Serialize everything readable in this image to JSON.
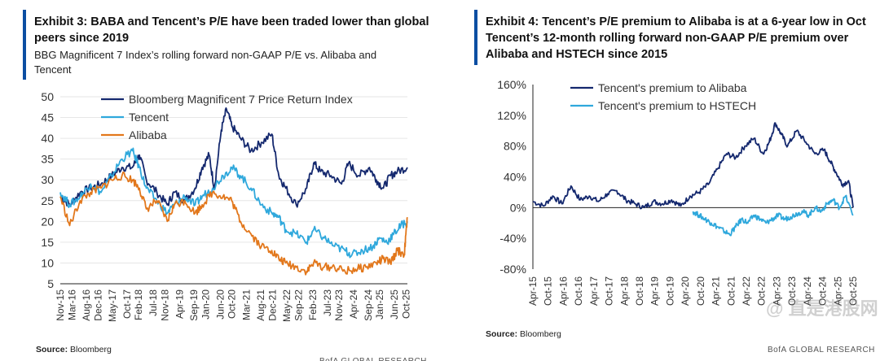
{
  "left": {
    "title_line1": "Exhibit 3: BABA and Tencent’s P/E have been traded lower than global",
    "title_line2": "peers since 2019",
    "subtitle_line1": "BBG Magnificent 7 Index’s rolling forward non-GAAP P/E vs. Alibaba and",
    "subtitle_line2": "Tencent",
    "source_label": "Source:",
    "source_value": "Bloomberg",
    "footer_partial": "BofA GLOBAL RESEARCH"
  },
  "right": {
    "title_line1": "Exhibit 4: Tencent’s P/E premium to Alibaba is at a 6-year low in Oct",
    "title_line2": "Tencent’s 12-month rolling forward non-GAAP P/E premium over",
    "title_line3": "Alibaba and HSTECH since 2015",
    "source_label": "Source:",
    "source_value": "Bloomberg",
    "footer": "BofA GLOBAL RESEARCH"
  },
  "watermark": "@ 直是港股网",
  "colors": {
    "dark_blue": "#14286e",
    "light_blue": "#2fa8dc",
    "orange": "#e2771b",
    "accent_bar": "#0b4ea2"
  },
  "chart_data": [
    {
      "type": "line",
      "title": "BBG Magnificent 7 Index’s rolling forward non-GAAP P/E vs. Alibaba and Tencent",
      "ylim": [
        5,
        50
      ],
      "yticks": [
        5,
        10,
        15,
        20,
        25,
        30,
        35,
        40,
        45,
        50
      ],
      "xlim": [
        2015.83,
        2025.79
      ],
      "xticks": [
        {
          "label": "Nov-15",
          "t": 2015.83
        },
        {
          "label": "Mar-16",
          "t": 2016.17
        },
        {
          "label": "Aug-16",
          "t": 2016.58
        },
        {
          "label": "Dec-16",
          "t": 2016.92
        },
        {
          "label": "May-17",
          "t": 2017.33
        },
        {
          "label": "Oct-17",
          "t": 2017.75
        },
        {
          "label": "Feb-18",
          "t": 2018.08
        },
        {
          "label": "Jul-18",
          "t": 2018.5
        },
        {
          "label": "Nov-18",
          "t": 2018.83
        },
        {
          "label": "Apr-19",
          "t": 2019.25
        },
        {
          "label": "Sep-19",
          "t": 2019.67
        },
        {
          "label": "Jan-20",
          "t": 2020.0
        },
        {
          "label": "Jun-20",
          "t": 2020.42
        },
        {
          "label": "Oct-20",
          "t": 2020.75
        },
        {
          "label": "Mar-21",
          "t": 2021.17
        },
        {
          "label": "Aug-21",
          "t": 2021.58
        },
        {
          "label": "Dec-21",
          "t": 2021.92
        },
        {
          "label": "May-22",
          "t": 2022.33
        },
        {
          "label": "Sep-22",
          "t": 2022.67
        },
        {
          "label": "Feb-23",
          "t": 2023.08
        },
        {
          "label": "Jul-23",
          "t": 2023.5
        },
        {
          "label": "Nov-23",
          "t": 2023.83
        },
        {
          "label": "Apr-24",
          "t": 2024.25
        },
        {
          "label": "Sep-24",
          "t": 2024.67
        },
        {
          "label": "Jan-25",
          "t": 2025.0
        },
        {
          "label": "Jun-25",
          "t": 2025.42
        },
        {
          "label": "Oct-25",
          "t": 2025.75
        }
      ],
      "legend_position": "top",
      "series": [
        {
          "name": "Bloomberg Magnificent 7 Price Return Index",
          "color": "#14286e",
          "x": [
            2015.83,
            2016.1,
            2016.4,
            2016.7,
            2017.0,
            2017.3,
            2017.6,
            2017.9,
            2018.1,
            2018.3,
            2018.6,
            2018.9,
            2019.1,
            2019.4,
            2019.7,
            2019.9,
            2020.1,
            2020.25,
            2020.45,
            2020.6,
            2020.75,
            2021.0,
            2021.3,
            2021.6,
            2021.9,
            2022.1,
            2022.3,
            2022.6,
            2022.9,
            2023.1,
            2023.3,
            2023.6,
            2023.9,
            2024.1,
            2024.4,
            2024.7,
            2024.9,
            2025.1,
            2025.3,
            2025.5,
            2025.79
          ],
          "y": [
            26,
            24,
            27,
            28,
            29,
            31,
            33,
            33,
            36,
            30,
            27,
            24,
            27,
            25,
            28,
            33,
            36,
            28,
            42,
            47,
            43,
            40,
            37,
            39,
            41,
            31,
            28,
            24,
            28,
            34,
            32,
            31,
            29,
            34,
            31,
            33,
            30,
            28,
            31,
            32,
            33
          ]
        },
        {
          "name": "Tencent",
          "color": "#2fa8dc",
          "x": [
            2015.83,
            2016.1,
            2016.4,
            2016.7,
            2017.0,
            2017.3,
            2017.6,
            2017.9,
            2018.1,
            2018.3,
            2018.6,
            2018.9,
            2019.1,
            2019.4,
            2019.7,
            2019.9,
            2020.2,
            2020.5,
            2020.75,
            2021.0,
            2021.3,
            2021.6,
            2021.9,
            2022.1,
            2022.3,
            2022.6,
            2022.9,
            2023.1,
            2023.4,
            2023.7,
            2024.0,
            2024.2,
            2024.5,
            2024.8,
            2025.0,
            2025.2,
            2025.4,
            2025.6,
            2025.79
          ],
          "y": [
            27,
            24,
            26,
            29,
            27,
            31,
            35,
            37,
            33,
            28,
            25,
            22,
            24,
            26,
            24,
            26,
            28,
            31,
            33,
            31,
            28,
            24,
            22,
            21,
            18,
            17,
            15,
            18,
            16,
            14,
            13,
            12,
            13,
            14,
            16,
            15,
            17,
            19,
            20
          ]
        },
        {
          "name": "Alibaba",
          "color": "#e2771b",
          "x": [
            2015.83,
            2016.1,
            2016.4,
            2016.7,
            2017.0,
            2017.3,
            2017.6,
            2017.9,
            2018.1,
            2018.3,
            2018.6,
            2018.9,
            2019.1,
            2019.4,
            2019.7,
            2019.9,
            2020.2,
            2020.5,
            2020.75,
            2021.0,
            2021.3,
            2021.6,
            2021.9,
            2022.1,
            2022.3,
            2022.6,
            2022.9,
            2023.1,
            2023.4,
            2023.7,
            2024.0,
            2024.3,
            2024.6,
            2024.9,
            2025.1,
            2025.3,
            2025.5,
            2025.7,
            2025.79
          ],
          "y": [
            26,
            19,
            25,
            27,
            28,
            30,
            31,
            30,
            28,
            23,
            25,
            20,
            24,
            25,
            22,
            24,
            27,
            26,
            25,
            20,
            17,
            14,
            13,
            11,
            10,
            9,
            8,
            10,
            9,
            9,
            8,
            8.5,
            9,
            10,
            11,
            10,
            13,
            12,
            21
          ]
        }
      ]
    },
    {
      "type": "line",
      "title": "Tencent’s 12-month rolling forward non-GAAP P/E premium over Alibaba and HSTECH since 2015",
      "ylim": [
        -80,
        160
      ],
      "yticks": [
        -80,
        -40,
        0,
        40,
        80,
        120,
        160
      ],
      "ytick_labels": [
        "-80%",
        "-40%",
        "0%",
        "40%",
        "80%",
        "120%",
        "160%"
      ],
      "xlim": [
        2015.25,
        2025.75
      ],
      "xticks": [
        {
          "label": "Apr-15",
          "t": 2015.25
        },
        {
          "label": "Oct-15",
          "t": 2015.75
        },
        {
          "label": "Apr-16",
          "t": 2016.25
        },
        {
          "label": "Oct-16",
          "t": 2016.75
        },
        {
          "label": "Apr-17",
          "t": 2017.25
        },
        {
          "label": "Oct-17",
          "t": 2017.75
        },
        {
          "label": "Apr-18",
          "t": 2018.25
        },
        {
          "label": "Oct-18",
          "t": 2018.75
        },
        {
          "label": "Apr-19",
          "t": 2019.25
        },
        {
          "label": "Oct-19",
          "t": 2019.75
        },
        {
          "label": "Apr-20",
          "t": 2020.25
        },
        {
          "label": "Oct-20",
          "t": 2020.75
        },
        {
          "label": "Apr-21",
          "t": 2021.25
        },
        {
          "label": "Oct-21",
          "t": 2021.75
        },
        {
          "label": "Apr-22",
          "t": 2022.25
        },
        {
          "label": "Oct-22",
          "t": 2022.75
        },
        {
          "label": "Apr-23",
          "t": 2023.25
        },
        {
          "label": "Oct-23",
          "t": 2023.75
        },
        {
          "label": "Apr-24",
          "t": 2024.25
        },
        {
          "label": "Oct-24",
          "t": 2024.75
        },
        {
          "label": "Apr-25",
          "t": 2025.25
        },
        {
          "label": "Oct-25",
          "t": 2025.75
        }
      ],
      "legend_position": "top-left",
      "series": [
        {
          "name": "Tencent's premium to Alibaba",
          "color": "#14286e",
          "x": [
            2015.25,
            2015.6,
            2015.9,
            2016.2,
            2016.5,
            2016.8,
            2017.1,
            2017.4,
            2017.7,
            2018.0,
            2018.3,
            2018.6,
            2018.9,
            2019.2,
            2019.5,
            2019.8,
            2020.1,
            2020.4,
            2020.7,
            2021.0,
            2021.3,
            2021.6,
            2021.9,
            2022.2,
            2022.5,
            2022.8,
            2023.0,
            2023.2,
            2023.4,
            2023.6,
            2023.9,
            2024.2,
            2024.5,
            2024.8,
            2025.0,
            2025.2,
            2025.4,
            2025.6,
            2025.75
          ],
          "y": [
            8,
            2,
            15,
            5,
            28,
            10,
            15,
            8,
            18,
            22,
            10,
            5,
            0,
            8,
            5,
            10,
            2,
            15,
            20,
            30,
            50,
            70,
            65,
            80,
            90,
            70,
            85,
            110,
            95,
            80,
            100,
            85,
            70,
            75,
            60,
            45,
            30,
            35,
            0
          ]
        },
        {
          "name": "Tencent's premium to HSTECH",
          "color": "#2fa8dc",
          "x": [
            2020.5,
            2020.7,
            2020.9,
            2021.1,
            2021.3,
            2021.5,
            2021.7,
            2021.9,
            2022.1,
            2022.3,
            2022.5,
            2022.7,
            2022.9,
            2023.1,
            2023.3,
            2023.5,
            2023.7,
            2023.9,
            2024.1,
            2024.3,
            2024.5,
            2024.7,
            2024.9,
            2025.1,
            2025.3,
            2025.5,
            2025.75
          ],
          "y": [
            -5,
            -10,
            -15,
            -20,
            -25,
            -30,
            -35,
            -25,
            -15,
            -20,
            -10,
            -15,
            -20,
            -15,
            -10,
            -15,
            -12,
            -8,
            -5,
            -10,
            0,
            -5,
            5,
            10,
            0,
            15,
            -10
          ]
        }
      ]
    }
  ]
}
